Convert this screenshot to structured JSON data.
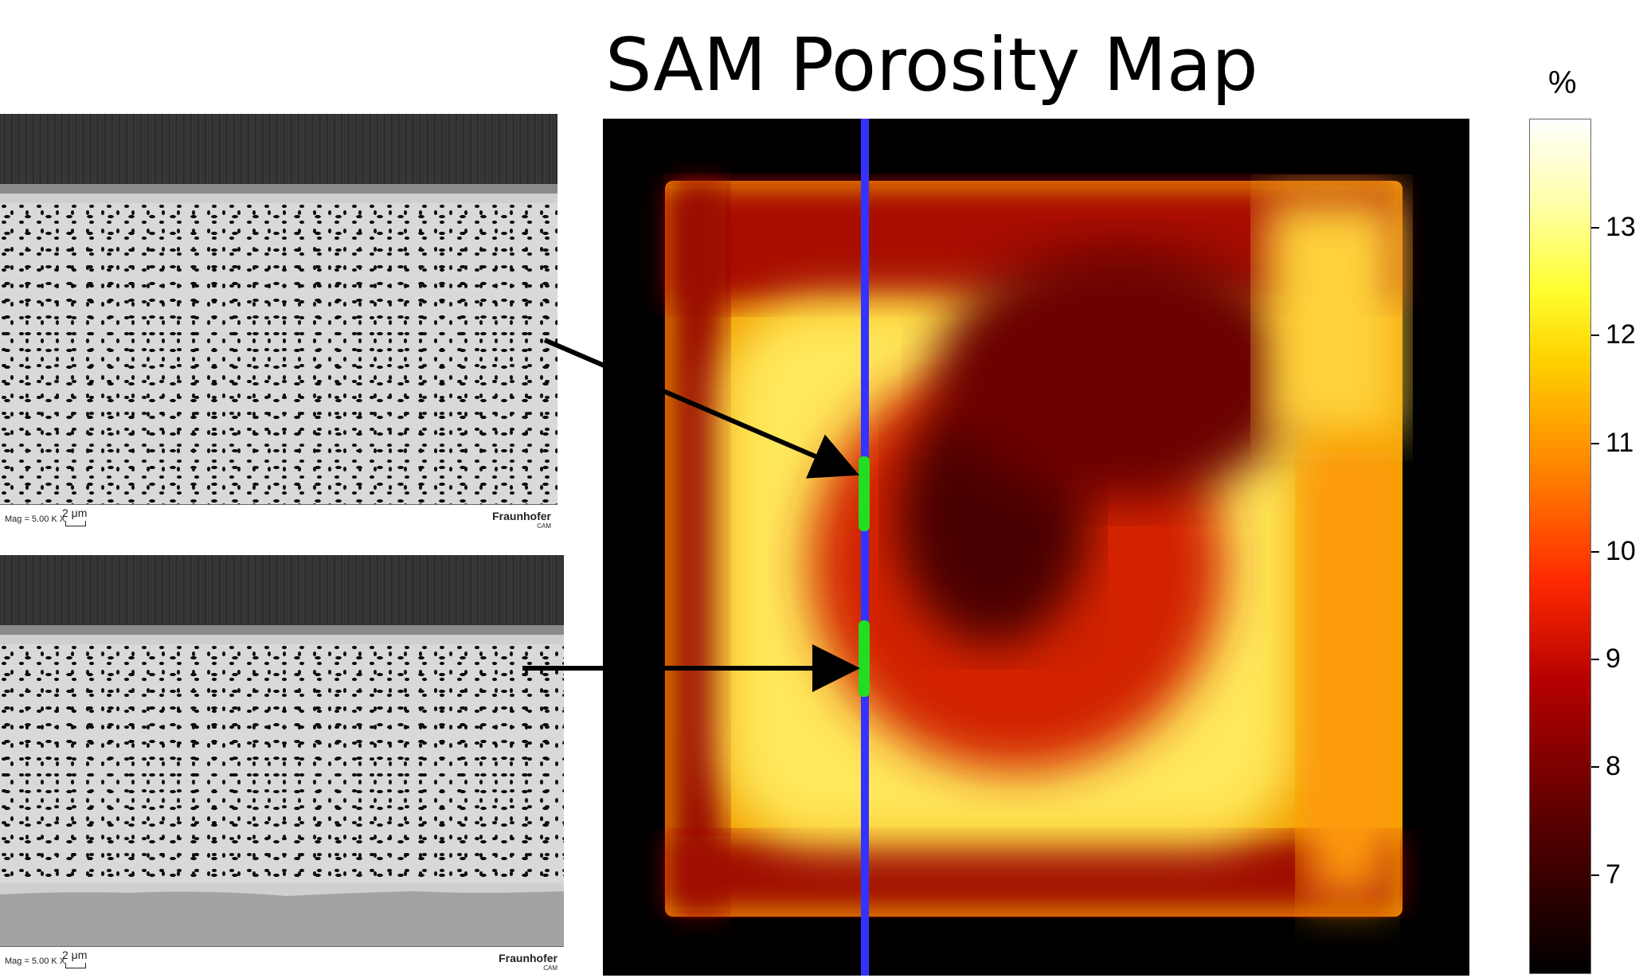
{
  "title": "SAM Porosity Map",
  "colorbar": {
    "unit_label": "%",
    "ticks": [
      "13",
      "12",
      "11",
      "10",
      "9",
      "8",
      "7"
    ],
    "colors": [
      "#000000",
      "#5a0000",
      "#b40000",
      "#ff2a00",
      "#ff8a00",
      "#ffd200",
      "#ffff30",
      "#ffffff"
    ]
  },
  "sem_top": {
    "mag": "Mag = 5.00 K X",
    "scale": "2 μm",
    "brand": "Fraunhofer",
    "brand_sub": "CAM"
  },
  "sem_bottom": {
    "mag": "Mag = 5.00 K X",
    "scale": "2 μm",
    "brand": "Fraunhofer",
    "brand_sub": "CAM"
  },
  "marker_colors": {
    "scan_line": "#3333ff",
    "sample_segment": "#22dd22",
    "arrow": "#000000"
  }
}
